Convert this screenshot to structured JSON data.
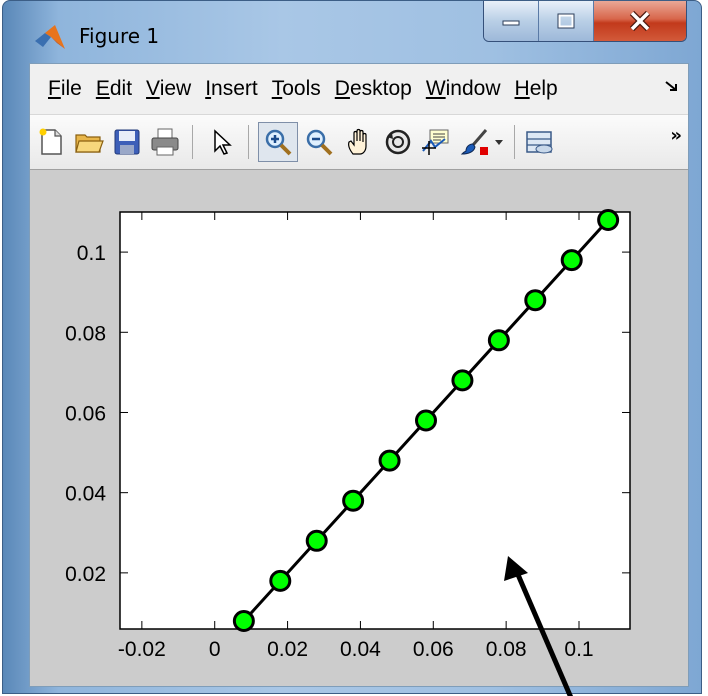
{
  "window": {
    "title": "Figure 1",
    "buttons": [
      "minimize",
      "maximize",
      "close"
    ]
  },
  "menubar": {
    "items": [
      {
        "mnemonic": "F",
        "rest": "ile"
      },
      {
        "mnemonic": "E",
        "rest": "dit"
      },
      {
        "mnemonic": "V",
        "rest": "iew"
      },
      {
        "mnemonic": "I",
        "rest": "nsert"
      },
      {
        "mnemonic": "T",
        "rest": "ools"
      },
      {
        "mnemonic": "D",
        "rest": "esktop"
      },
      {
        "mnemonic": "W",
        "rest": "indow"
      },
      {
        "mnemonic": "H",
        "rest": "elp"
      }
    ],
    "overflow_icon": "dock-arrow-icon"
  },
  "toolbar": {
    "icons": [
      "new-figure-icon",
      "open-file-icon",
      "save-icon",
      "print-icon",
      "edit-plot-pointer-icon",
      "zoom-in-icon",
      "zoom-out-icon",
      "pan-hand-icon",
      "rotate-3d-icon",
      "data-cursor-icon",
      "brush-icon",
      "insert-colorbar-icon"
    ],
    "active_tool": "zoom-in-icon",
    "overflow": "»"
  },
  "chart_data": {
    "type": "line",
    "x": [
      0.008,
      0.018,
      0.028,
      0.038,
      0.048,
      0.058,
      0.068,
      0.078,
      0.088,
      0.098,
      0.108
    ],
    "y": [
      0.008,
      0.018,
      0.028,
      0.038,
      0.048,
      0.058,
      0.068,
      0.078,
      0.088,
      0.098,
      0.108
    ],
    "xlim": [
      -0.026,
      0.114
    ],
    "ylim": [
      0.006,
      0.11
    ],
    "xticks": [
      -0.02,
      0,
      0.02,
      0.04,
      0.06,
      0.08,
      0.1
    ],
    "xtick_labels": [
      "-0.02",
      "0",
      "0.02",
      "0.04",
      "0.06",
      "0.08",
      "0.1"
    ],
    "yticks": [
      0.02,
      0.04,
      0.06,
      0.08,
      0.1
    ],
    "ytick_labels": [
      "0.02",
      "0.04",
      "0.06",
      "0.08",
      "0.1"
    ],
    "line_color": "#000000",
    "marker": "circle",
    "marker_face_color": "#00ff00",
    "marker_edge_color": "#000000",
    "grid": false
  },
  "colors": {
    "figure_background": "#cccccc",
    "axes_background": "#ffffff"
  }
}
